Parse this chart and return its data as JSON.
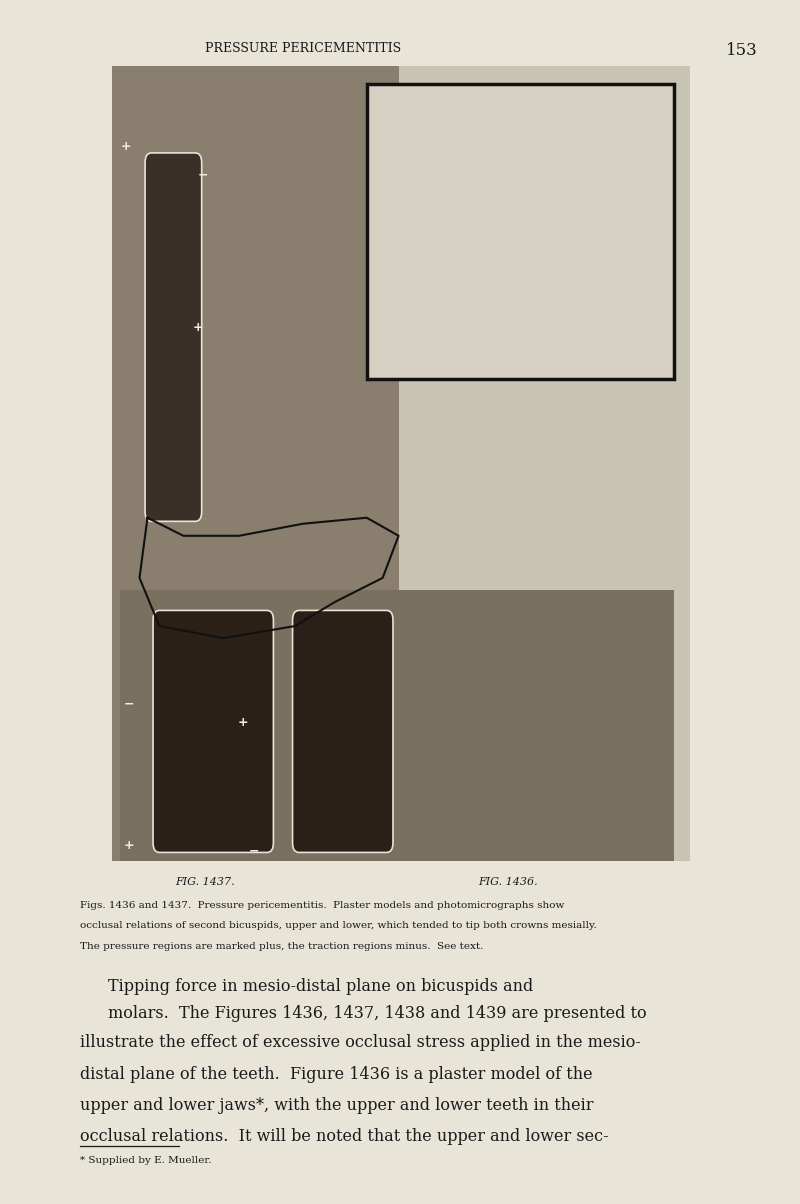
{
  "page_bg": "#e8e4d8",
  "page_width": 8.0,
  "page_height": 12.04,
  "page_number": "153",
  "header_text": "PRESSURE PERICEMENTITIS",
  "header_fontsize": 9,
  "page_num_fontsize": 12,
  "fig_caption_left": "FIG. 1437.",
  "fig_caption_right": "FIG. 1436.",
  "caption_line1": "Figs. 1436 and 1437.  Pressure pericementitis.  Plaster models and photomicrographs show",
  "caption_line2": "occlusal relations of second bicuspids, upper and lower, which tended to tip both crowns mesially.",
  "caption_line3": "The pressure regions are marked plus, the traction regions minus.  See text.",
  "caption_fontsize": 7.5,
  "section_title_line1": "Tipping force in mesio-distal plane on bicuspids and",
  "section_title_line2": "molars.",
  "body_line1": "The Figures 1436, 1437, 1438 and 1439 are presented to",
  "body_line2": "illustrate the effect of excessive occlusal stress applied in the mesio-",
  "body_line3": "distal plane of the teeth.  Figure 1436 is a plaster model of the",
  "body_line4": "upper and lower jaws*, with the upper and lower teeth in their",
  "body_line5": "occlusal relations.  It will be noted that the upper and lower sec-",
  "footnote_text": "* Supplied by E. Mueller.",
  "body_fontsize": 11.5,
  "section_title_fontsize": 11.5,
  "text_color": "#1a1a1a",
  "image_bg": "#c8c4b4",
  "photo_color": "#8a7f6e",
  "model_color": "#d5d0c2",
  "tooth_color": "#3a3028",
  "sign_color": "#f0ece0"
}
